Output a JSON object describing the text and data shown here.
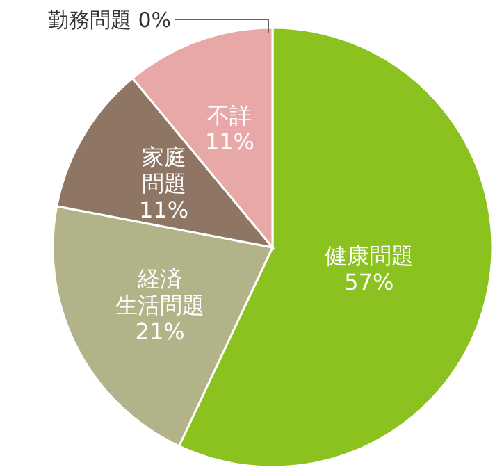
{
  "chart_data": {
    "type": "pie",
    "categories": [
      "健康問題",
      "経済生活問題",
      "家庭問題",
      "不詳",
      "勤務問題"
    ],
    "values": [
      57,
      21,
      11,
      11,
      0
    ],
    "colors": [
      "#8cc21f",
      "#b3b38a",
      "#8f7563",
      "#e8a8a8",
      "#aaaaaa"
    ],
    "value_labels": [
      "57%",
      "21%",
      "11%",
      "11%",
      "0%"
    ],
    "data_labels": true
  }
}
